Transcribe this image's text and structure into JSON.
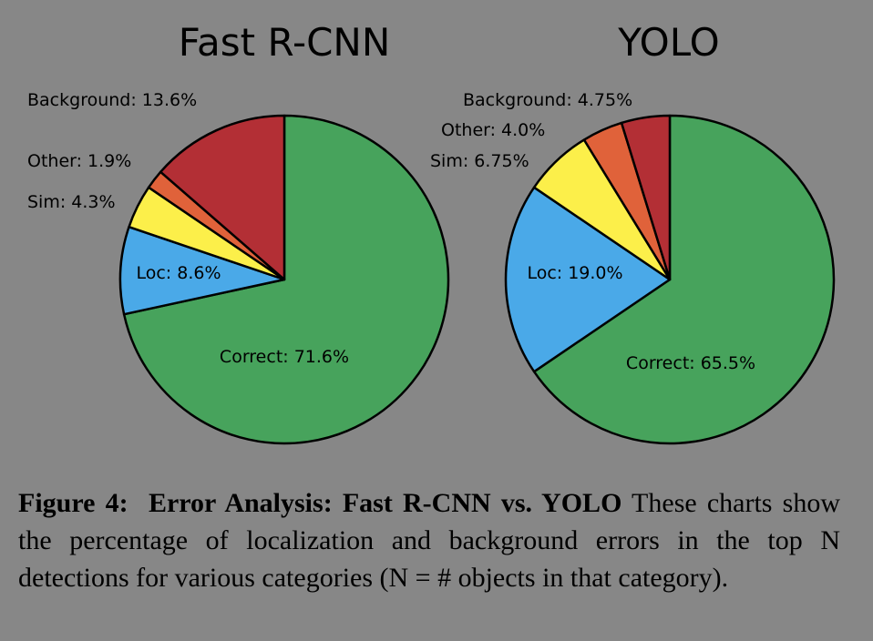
{
  "chart_data": [
    {
      "type": "pie",
      "title": "Fast R-CNN",
      "slices": [
        {
          "label": "Correct",
          "value": 71.6,
          "text": "Correct: 71.6%",
          "color": "#47a35c"
        },
        {
          "label": "Loc",
          "value": 8.6,
          "text": "Loc: 8.6%",
          "color": "#4aa9e8"
        },
        {
          "label": "Sim",
          "value": 4.3,
          "text": "Sim: 4.3%",
          "color": "#fcef4a"
        },
        {
          "label": "Other",
          "value": 1.9,
          "text": "Other: 1.9%",
          "color": "#e0623a"
        },
        {
          "label": "Background",
          "value": 13.6,
          "text": "Background: 13.6%",
          "color": "#b32f35"
        }
      ]
    },
    {
      "type": "pie",
      "title": "YOLO",
      "slices": [
        {
          "label": "Correct",
          "value": 65.5,
          "text": "Correct: 65.5%",
          "color": "#47a35c"
        },
        {
          "label": "Loc",
          "value": 19.0,
          "text": "Loc: 19.0%",
          "color": "#4aa9e8"
        },
        {
          "label": "Sim",
          "value": 6.75,
          "text": "Sim: 6.75%",
          "color": "#fcef4a"
        },
        {
          "label": "Other",
          "value": 4.0,
          "text": "Other: 4.0%",
          "color": "#e0623a"
        },
        {
          "label": "Background",
          "value": 4.75,
          "text": "Background: 4.75%",
          "color": "#b32f35"
        }
      ]
    }
  ],
  "caption": {
    "figure_label": "Figure 4:",
    "bold_title": "Error Analysis: Fast R-CNN vs. YOLO",
    "text": "These charts show the percentage of localization and background errors in the top N detections for various categories (N = # objects in that category)."
  }
}
